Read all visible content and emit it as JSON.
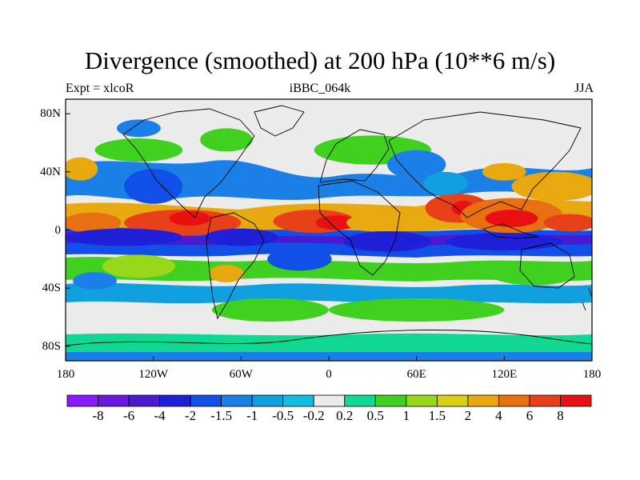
{
  "title": "Divergence (smoothed) at 200 hPa (10**6 m/s)",
  "subtitle_left": "Expt = xlcoR",
  "subtitle_center": "iBBC_064k",
  "subtitle_right": "JJA",
  "map": {
    "lon_range": [
      -180,
      180
    ],
    "lat_range": [
      -90,
      90
    ],
    "lon_ticks": [
      {
        "value": -180,
        "label": "180"
      },
      {
        "value": -120,
        "label": "120W"
      },
      {
        "value": -60,
        "label": "60W"
      },
      {
        "value": 0,
        "label": "0"
      },
      {
        "value": 60,
        "label": "60E"
      },
      {
        "value": 120,
        "label": "120E"
      },
      {
        "value": 180,
        "label": "180"
      }
    ],
    "lat_ticks": [
      {
        "value": 80,
        "label": "80N"
      },
      {
        "value": 40,
        "label": "40N"
      },
      {
        "value": 0,
        "label": "0"
      },
      {
        "value": -40,
        "label": "40S"
      },
      {
        "value": -80,
        "label": "80S"
      }
    ]
  },
  "colorbar": {
    "colors": [
      "#8a1aff",
      "#6a17e0",
      "#4a1ad0",
      "#2020d8",
      "#1050e8",
      "#1a80e8",
      "#10a0e0",
      "#10bfe0",
      "#ececec",
      "#10d890",
      "#40d020",
      "#98d81a",
      "#d8d010",
      "#e8a810",
      "#e87010",
      "#e84018",
      "#e81010"
    ],
    "labels": [
      "-8",
      "-6",
      "-4",
      "-2",
      "-1.5",
      "-1",
      "-0.5",
      "-0.2",
      "0.2",
      "0.5",
      "1",
      "1.5",
      "2",
      "4",
      "6",
      "8"
    ]
  },
  "field_blobs": [
    {
      "lon": -162,
      "lat": 5,
      "rx": 20,
      "ry": 7,
      "level": 14
    },
    {
      "lon": -100,
      "lat": 5,
      "rx": 40,
      "ry": 9,
      "level": 15
    },
    {
      "lon": -95,
      "lat": 8,
      "rx": 14,
      "ry": 5,
      "level": 16
    },
    {
      "lon": -45,
      "lat": 8,
      "rx": 15,
      "ry": 5,
      "level": 13
    },
    {
      "lon": -10,
      "lat": 6,
      "rx": 28,
      "ry": 8,
      "level": 15
    },
    {
      "lon": 5,
      "lat": 5,
      "rx": 14,
      "ry": 5,
      "level": 16
    },
    {
      "lon": 30,
      "lat": 5,
      "rx": 18,
      "ry": 6,
      "level": 13
    },
    {
      "lon": 88,
      "lat": 15,
      "rx": 22,
      "ry": 10,
      "level": 15
    },
    {
      "lon": 92,
      "lat": 15,
      "rx": 8,
      "ry": 5,
      "level": 16
    },
    {
      "lon": 125,
      "lat": 10,
      "rx": 35,
      "ry": 12,
      "level": 14
    },
    {
      "lon": 125,
      "lat": 8,
      "rx": 18,
      "ry": 6,
      "level": 16
    },
    {
      "lon": 165,
      "lat": 5,
      "rx": 18,
      "ry": 6,
      "level": 15
    },
    {
      "lon": 155,
      "lat": 30,
      "rx": 30,
      "ry": 10,
      "level": 13
    },
    {
      "lon": 120,
      "lat": 40,
      "rx": 15,
      "ry": 6,
      "level": 13
    },
    {
      "lon": -170,
      "lat": 42,
      "rx": 12,
      "ry": 8,
      "level": 13
    },
    {
      "lon": -70,
      "lat": -30,
      "rx": 12,
      "ry": 6,
      "level": 13
    },
    {
      "lon": -130,
      "lat": -25,
      "rx": 25,
      "ry": 8,
      "level": 11
    },
    {
      "lon": -40,
      "lat": -55,
      "rx": 40,
      "ry": 8,
      "level": 10
    },
    {
      "lon": 60,
      "lat": -55,
      "rx": 60,
      "ry": 8,
      "level": 10
    },
    {
      "lon": 140,
      "lat": -30,
      "rx": 30,
      "ry": 8,
      "level": 10
    },
    {
      "lon": 30,
      "lat": 55,
      "rx": 40,
      "ry": 10,
      "level": 10
    },
    {
      "lon": -130,
      "lat": 55,
      "rx": 30,
      "ry": 8,
      "level": 10
    },
    {
      "lon": -70,
      "lat": 62,
      "rx": 18,
      "ry": 8,
      "level": 10
    },
    {
      "lon": -140,
      "lat": -5,
      "rx": 40,
      "ry": 6,
      "level": 3
    },
    {
      "lon": -60,
      "lat": -5,
      "rx": 25,
      "ry": 6,
      "level": 3
    },
    {
      "lon": 40,
      "lat": -8,
      "rx": 30,
      "ry": 7,
      "level": 3
    },
    {
      "lon": 120,
      "lat": -8,
      "rx": 40,
      "ry": 6,
      "level": 3
    },
    {
      "lon": -20,
      "lat": -20,
      "rx": 22,
      "ry": 8,
      "level": 4
    },
    {
      "lon": -120,
      "lat": 30,
      "rx": 20,
      "ry": 12,
      "level": 4
    },
    {
      "lon": -130,
      "lat": 70,
      "rx": 15,
      "ry": 6,
      "level": 5
    },
    {
      "lon": 60,
      "lat": 45,
      "rx": 20,
      "ry": 10,
      "level": 5
    },
    {
      "lon": 80,
      "lat": 32,
      "rx": 15,
      "ry": 8,
      "level": 6
    },
    {
      "lon": -160,
      "lat": -35,
      "rx": 15,
      "ry": 6,
      "level": 5
    }
  ]
}
